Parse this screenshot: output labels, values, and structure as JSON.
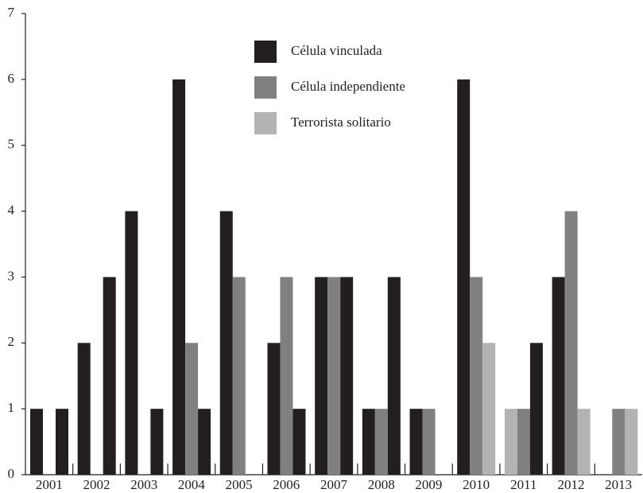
{
  "chart_data": {
    "type": "bar",
    "categories": [
      "2001",
      "2002",
      "2003",
      "2004",
      "2005",
      "2006",
      "2007",
      "2008",
      "2009",
      "2010",
      "2011",
      "2012",
      "2013"
    ],
    "series": [
      {
        "name": "Célula vinculada",
        "color": "#231f20",
        "values": [
          1,
          2,
          4,
          6,
          4,
          2,
          3,
          1,
          1,
          6,
          1,
          3,
          0
        ],
        "colors": [
          "#231f20",
          "#231f20",
          "#231f20",
          "#231f20",
          "#231f20",
          "#231f20",
          "#231f20",
          "#231f20",
          "#231f20",
          "#231f20",
          "#b3b3b3",
          "#231f20",
          "#231f20"
        ]
      },
      {
        "name": "Célula independiente",
        "color": "#808080",
        "values": [
          0,
          0,
          0,
          2,
          3,
          3,
          3,
          1,
          1,
          3,
          1,
          4,
          1
        ],
        "colors": [
          "#808080",
          "#808080",
          "#808080",
          "#808080",
          "#808080",
          "#808080",
          "#808080",
          "#808080",
          "#808080",
          "#808080",
          "#808080",
          "#808080",
          "#808080"
        ]
      },
      {
        "name": "Terrorista solitario",
        "color": "#b3b3b3",
        "values": [
          1,
          3,
          1,
          1,
          0,
          1,
          3,
          3,
          0,
          2,
          2,
          1,
          1
        ],
        "colors": [
          "#231f20",
          "#231f20",
          "#231f20",
          "#231f20",
          "#b3b3b3",
          "#231f20",
          "#231f20",
          "#231f20",
          "#b3b3b3",
          "#b3b3b3",
          "#231f20",
          "#b3b3b3",
          "#b3b3b3"
        ]
      }
    ],
    "ylim": [
      0,
      7
    ],
    "yticks": [
      0,
      1,
      2,
      3,
      4,
      5,
      6,
      7
    ],
    "grid": false
  }
}
